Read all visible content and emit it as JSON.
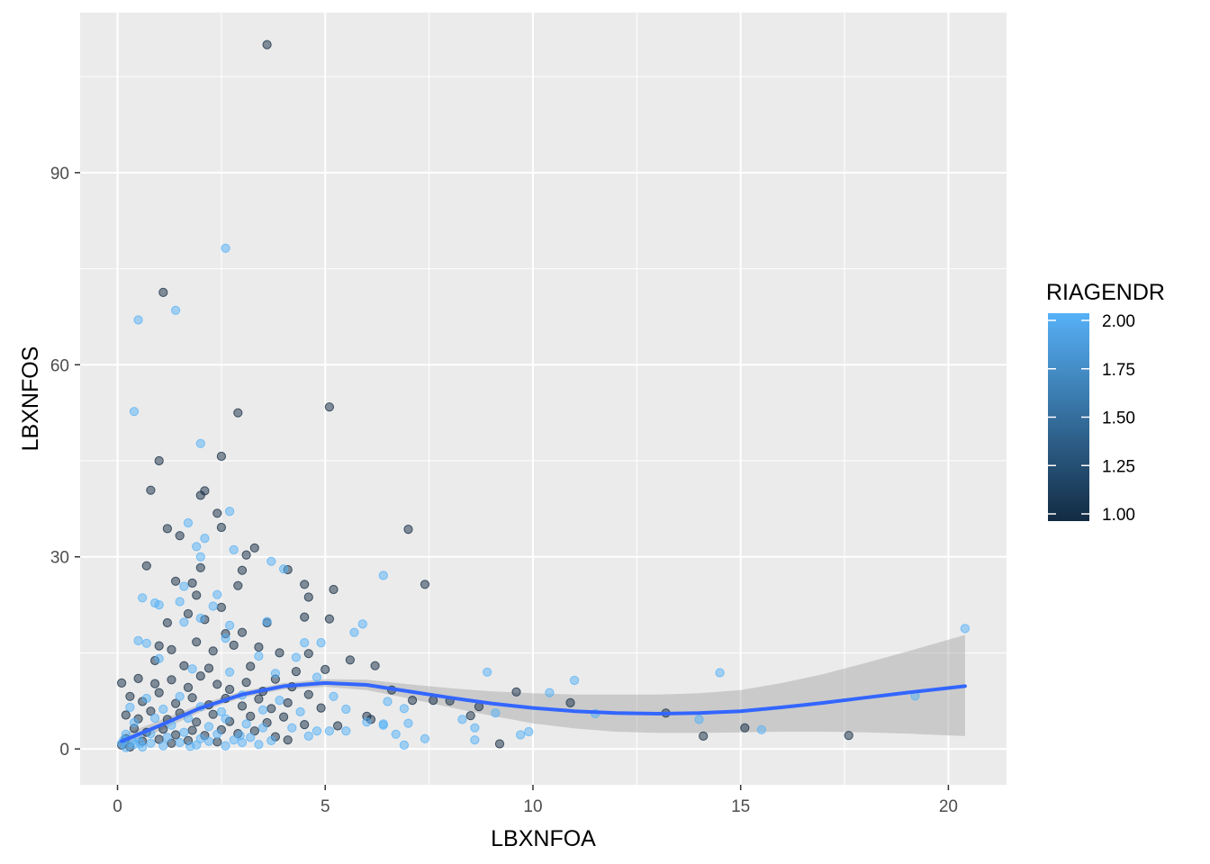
{
  "chart_data": {
    "type": "scatter",
    "title": "",
    "xlabel": "LBXNFOA",
    "ylabel": "LBXNFOS",
    "xlim": [
      -0.9,
      21.4
    ],
    "ylim": [
      -5.6,
      115.0
    ],
    "x_ticks": [
      "0",
      "5",
      "10",
      "15",
      "20"
    ],
    "x_tick_values": [
      0,
      5,
      10,
      15,
      20
    ],
    "y_ticks": [
      "0",
      "30",
      "60",
      "90"
    ],
    "y_tick_values": [
      0,
      30,
      60,
      90
    ],
    "grid": true,
    "background": "#ebebeb",
    "legend": {
      "title": "RIAGENDR",
      "position": "right",
      "type": "colorbar",
      "labels": [
        "2.00",
        "1.75",
        "1.50",
        "1.25",
        "1.00"
      ],
      "values": [
        2.0,
        1.75,
        1.5,
        1.25,
        1.0
      ],
      "color_low": "#132b43",
      "color_high": "#56b1f7"
    },
    "smooth": {
      "color": "#3366ff",
      "band_color": "#999999",
      "x": [
        0.1,
        1,
        2,
        3,
        4,
        5,
        6,
        7,
        8,
        9,
        10,
        11,
        12,
        13,
        14,
        15,
        16,
        17,
        18,
        19,
        20.4
      ],
      "y": [
        1.2,
        3.6,
        6.4,
        8.5,
        9.8,
        10.3,
        10.0,
        9.0,
        8.0,
        7.1,
        6.4,
        5.9,
        5.6,
        5.5,
        5.6,
        5.9,
        6.5,
        7.2,
        8.0,
        8.8,
        9.8
      ],
      "lower": [
        0.2,
        2.8,
        5.8,
        8.0,
        9.3,
        9.7,
        9.2,
        7.9,
        6.5,
        5.2,
        4.0,
        3.2,
        2.7,
        2.5,
        2.5,
        2.6,
        2.7,
        2.7,
        2.6,
        2.4,
        2.0
      ],
      "upper": [
        2.2,
        4.4,
        7.0,
        9.0,
        10.3,
        10.9,
        10.8,
        10.1,
        9.5,
        9.0,
        8.7,
        8.5,
        8.5,
        8.5,
        8.7,
        9.2,
        10.3,
        11.7,
        13.4,
        15.2,
        17.8
      ]
    },
    "series": [
      {
        "group_value": 1.0,
        "color": "#132b43",
        "points": [
          [
            3.6,
            110.0
          ],
          [
            1.1,
            71.3
          ],
          [
            2.9,
            52.5
          ],
          [
            5.1,
            53.4
          ],
          [
            1.0,
            45.0
          ],
          [
            2.5,
            45.7
          ],
          [
            0.8,
            40.4
          ],
          [
            2.1,
            40.3
          ],
          [
            2.0,
            39.6
          ],
          [
            1.2,
            34.4
          ],
          [
            7.0,
            34.3
          ],
          [
            2.4,
            36.8
          ],
          [
            2.5,
            34.6
          ],
          [
            1.5,
            33.3
          ],
          [
            0.7,
            28.6
          ],
          [
            3.3,
            31.4
          ],
          [
            3.1,
            30.3
          ],
          [
            2.0,
            28.3
          ],
          [
            3.0,
            27.9
          ],
          [
            4.1,
            28.0
          ],
          [
            7.4,
            25.7
          ],
          [
            5.2,
            24.9
          ],
          [
            1.4,
            26.2
          ],
          [
            1.8,
            25.9
          ],
          [
            2.9,
            25.5
          ],
          [
            4.5,
            25.7
          ],
          [
            4.6,
            23.7
          ],
          [
            1.9,
            24.0
          ],
          [
            2.5,
            22.1
          ],
          [
            1.2,
            19.7
          ],
          [
            1.7,
            21.1
          ],
          [
            2.1,
            20.2
          ],
          [
            3.0,
            18.2
          ],
          [
            4.5,
            20.6
          ],
          [
            5.1,
            20.3
          ],
          [
            3.6,
            19.7
          ],
          [
            2.6,
            18.0
          ],
          [
            0.1,
            10.3
          ],
          [
            1.0,
            16.1
          ],
          [
            1.3,
            15.5
          ],
          [
            1.9,
            16.7
          ],
          [
            2.3,
            15.3
          ],
          [
            2.8,
            16.2
          ],
          [
            3.4,
            15.9
          ],
          [
            3.9,
            15.0
          ],
          [
            4.6,
            14.9
          ],
          [
            0.9,
            13.8
          ],
          [
            1.6,
            13.0
          ],
          [
            2.2,
            12.6
          ],
          [
            3.2,
            12.9
          ],
          [
            4.3,
            12.1
          ],
          [
            5.0,
            12.4
          ],
          [
            5.6,
            13.9
          ],
          [
            6.2,
            13.0
          ],
          [
            5.3,
            3.6
          ],
          [
            0.5,
            11.0
          ],
          [
            0.9,
            10.2
          ],
          [
            1.3,
            10.8
          ],
          [
            1.7,
            9.6
          ],
          [
            2.0,
            11.4
          ],
          [
            2.4,
            10.1
          ],
          [
            2.7,
            9.3
          ],
          [
            3.1,
            10.4
          ],
          [
            3.5,
            9.0
          ],
          [
            3.8,
            10.9
          ],
          [
            4.2,
            9.7
          ],
          [
            4.6,
            8.5
          ],
          [
            6.6,
            9.2
          ],
          [
            7.6,
            7.6
          ],
          [
            8.0,
            7.5
          ],
          [
            8.7,
            6.6
          ],
          [
            9.6,
            8.9
          ],
          [
            10.9,
            7.2
          ],
          [
            7.1,
            7.6
          ],
          [
            0.3,
            8.2
          ],
          [
            0.6,
            7.4
          ],
          [
            1.0,
            8.8
          ],
          [
            1.4,
            7.1
          ],
          [
            1.8,
            8.0
          ],
          [
            2.2,
            6.9
          ],
          [
            2.6,
            7.9
          ],
          [
            3.0,
            6.7
          ],
          [
            3.4,
            7.8
          ],
          [
            3.7,
            6.3
          ],
          [
            4.1,
            7.2
          ],
          [
            4.9,
            6.4
          ],
          [
            6.0,
            5.1
          ],
          [
            8.5,
            5.2
          ],
          [
            0.2,
            5.3
          ],
          [
            0.5,
            4.7
          ],
          [
            0.8,
            5.9
          ],
          [
            1.2,
            4.6
          ],
          [
            1.5,
            5.6
          ],
          [
            1.9,
            4.2
          ],
          [
            2.3,
            5.4
          ],
          [
            2.7,
            4.3
          ],
          [
            3.2,
            5.1
          ],
          [
            3.6,
            4.1
          ],
          [
            4.0,
            5.0
          ],
          [
            4.5,
            3.8
          ],
          [
            6.1,
            4.6
          ],
          [
            0.4,
            3.2
          ],
          [
            0.7,
            2.6
          ],
          [
            1.1,
            3.1
          ],
          [
            1.4,
            2.2
          ],
          [
            1.8,
            2.9
          ],
          [
            2.1,
            2.1
          ],
          [
            2.5,
            3.0
          ],
          [
            2.9,
            2.4
          ],
          [
            3.3,
            2.8
          ],
          [
            3.8,
            1.9
          ],
          [
            4.1,
            1.4
          ],
          [
            0.2,
            1.6
          ],
          [
            0.6,
            1.2
          ],
          [
            1.0,
            1.5
          ],
          [
            1.3,
            0.9
          ],
          [
            1.7,
            1.3
          ],
          [
            2.4,
            1.1
          ],
          [
            13.2,
            5.6
          ],
          [
            14.1,
            2.0
          ],
          [
            15.1,
            3.3
          ],
          [
            17.6,
            2.1
          ],
          [
            0.1,
            0.6
          ],
          [
            0.3,
            0.3
          ],
          [
            9.2,
            0.8
          ]
        ]
      },
      {
        "group_value": 2.0,
        "color": "#56b1f7",
        "points": [
          [
            2.6,
            78.2
          ],
          [
            0.5,
            67.0
          ],
          [
            1.4,
            68.5
          ],
          [
            0.4,
            52.7
          ],
          [
            2.0,
            47.7
          ],
          [
            2.7,
            37.1
          ],
          [
            1.7,
            35.3
          ],
          [
            2.1,
            32.9
          ],
          [
            2.0,
            30.0
          ],
          [
            2.8,
            31.1
          ],
          [
            3.7,
            29.3
          ],
          [
            6.4,
            27.1
          ],
          [
            4.0,
            28.1
          ],
          [
            1.9,
            31.6
          ],
          [
            0.6,
            23.6
          ],
          [
            0.9,
            22.8
          ],
          [
            1.0,
            22.5
          ],
          [
            1.6,
            25.4
          ],
          [
            1.5,
            23.0
          ],
          [
            2.4,
            24.1
          ],
          [
            2.3,
            22.3
          ],
          [
            5.9,
            19.5
          ],
          [
            5.7,
            18.2
          ],
          [
            1.6,
            19.8
          ],
          [
            2.0,
            20.4
          ],
          [
            2.7,
            19.3
          ],
          [
            3.6,
            19.9
          ],
          [
            4.5,
            16.6
          ],
          [
            0.5,
            16.9
          ],
          [
            0.7,
            16.5
          ],
          [
            2.6,
            17.3
          ],
          [
            3.4,
            14.5
          ],
          [
            4.9,
            16.6
          ],
          [
            4.3,
            14.3
          ],
          [
            1.0,
            14.1
          ],
          [
            1.8,
            12.5
          ],
          [
            2.7,
            12.0
          ],
          [
            3.8,
            11.8
          ],
          [
            4.8,
            11.2
          ],
          [
            8.9,
            12.0
          ],
          [
            14.5,
            11.9
          ],
          [
            11.0,
            10.7
          ],
          [
            20.4,
            18.8
          ],
          [
            19.2,
            8.3
          ],
          [
            10.4,
            8.8
          ],
          [
            5.2,
            8.2
          ],
          [
            6.5,
            7.4
          ],
          [
            0.3,
            6.5
          ],
          [
            0.7,
            7.9
          ],
          [
            1.1,
            6.2
          ],
          [
            1.5,
            8.2
          ],
          [
            2.0,
            6.6
          ],
          [
            2.5,
            5.8
          ],
          [
            3.0,
            8.4
          ],
          [
            3.5,
            6.1
          ],
          [
            3.9,
            7.6
          ],
          [
            4.4,
            5.8
          ],
          [
            5.5,
            6.2
          ],
          [
            6.9,
            6.3
          ],
          [
            8.3,
            4.6
          ],
          [
            9.1,
            5.6
          ],
          [
            11.5,
            5.5
          ],
          [
            14.0,
            4.6
          ],
          [
            15.5,
            3.0
          ],
          [
            0.4,
            4.1
          ],
          [
            0.9,
            4.8
          ],
          [
            1.3,
            3.7
          ],
          [
            1.7,
            4.8
          ],
          [
            2.2,
            3.5
          ],
          [
            2.6,
            4.7
          ],
          [
            3.1,
            3.9
          ],
          [
            3.5,
            3.3
          ],
          [
            4.2,
            3.3
          ],
          [
            4.8,
            2.8
          ],
          [
            5.1,
            2.8
          ],
          [
            6.0,
            4.2
          ],
          [
            6.4,
            3.9
          ],
          [
            7.0,
            4.0
          ],
          [
            8.6,
            3.3
          ],
          [
            9.7,
            2.2
          ],
          [
            9.9,
            2.7
          ],
          [
            6.7,
            2.3
          ],
          [
            6.9,
            0.6
          ],
          [
            8.6,
            1.4
          ],
          [
            0.2,
            2.3
          ],
          [
            0.5,
            1.9
          ],
          [
            0.8,
            2.4
          ],
          [
            1.2,
            1.8
          ],
          [
            1.6,
            2.6
          ],
          [
            2.0,
            1.6
          ],
          [
            2.4,
            2.3
          ],
          [
            2.8,
            1.4
          ],
          [
            3.2,
            1.8
          ],
          [
            3.7,
            1.3
          ],
          [
            4.6,
            2.0
          ],
          [
            5.5,
            2.8
          ],
          [
            0.1,
            0.9
          ],
          [
            0.2,
            0.2
          ],
          [
            0.4,
            0.7
          ],
          [
            0.6,
            0.3
          ],
          [
            0.8,
            0.9
          ],
          [
            1.1,
            0.5
          ],
          [
            1.5,
            1.0
          ],
          [
            1.9,
            0.6
          ],
          [
            2.2,
            1.2
          ],
          [
            2.6,
            0.5
          ],
          [
            3.0,
            1.0
          ],
          [
            3.4,
            0.7
          ],
          [
            6.4,
            3.7
          ],
          [
            7.4,
            1.6
          ],
          [
            0.15,
            1.4
          ],
          [
            0.35,
            1.2
          ],
          [
            0.55,
            0.9
          ],
          [
            1.75,
            0.4
          ],
          [
            2.95,
            2.1
          ]
        ]
      }
    ]
  }
}
